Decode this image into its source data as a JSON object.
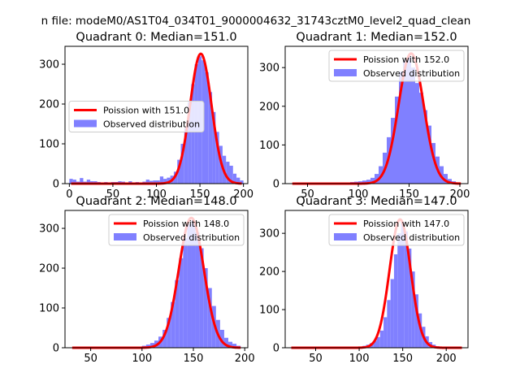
{
  "figure": {
    "suptitle": "n file: modeM0/AS1T04_034T01_9000004632_31743cztM0_level2_quad_clean"
  },
  "colors": {
    "curve": "#ff0000",
    "hist": "#8080ff",
    "axes": "#000000",
    "legend_edge": "#cccccc"
  },
  "chart_data": [
    {
      "type": "bar",
      "title": "Quadrant 0: Median=151.0",
      "median": 151.0,
      "xlim": [
        -5,
        205
      ],
      "ylim": [
        0,
        345
      ],
      "xticks": [
        0,
        50,
        100,
        150,
        200
      ],
      "yticks": [
        0,
        100,
        200,
        300
      ],
      "legend_loc": "center-left",
      "legend": [
        "Poission with 151.0",
        "Observed distribution"
      ],
      "bin_width": 4,
      "hist_x": [
        0,
        4,
        8,
        12,
        16,
        20,
        24,
        28,
        32,
        36,
        40,
        44,
        48,
        52,
        56,
        60,
        64,
        68,
        72,
        76,
        80,
        84,
        88,
        92,
        96,
        100,
        104,
        108,
        112,
        116,
        120,
        124,
        128,
        132,
        136,
        140,
        144,
        148,
        152,
        156,
        160,
        164,
        168,
        172,
        176,
        180,
        184,
        188,
        192,
        196
      ],
      "hist_y": [
        12,
        10,
        5,
        14,
        5,
        10,
        6,
        6,
        4,
        3,
        4,
        3,
        4,
        4,
        6,
        5,
        2,
        6,
        3,
        4,
        3,
        5,
        10,
        7,
        8,
        8,
        18,
        12,
        15,
        20,
        30,
        60,
        100,
        140,
        205,
        250,
        300,
        320,
        310,
        280,
        230,
        180,
        130,
        95,
        70,
        55,
        45,
        25,
        15,
        8
      ]
    },
    {
      "type": "bar",
      "title": "Quadrant 1: Median=152.0",
      "median": 152.0,
      "xlim": [
        28,
        208
      ],
      "ylim": [
        0,
        355
      ],
      "xticks": [
        50,
        100,
        150,
        200
      ],
      "yticks": [
        0,
        100,
        200,
        300
      ],
      "legend_loc": "top-right",
      "legend": [
        "Poission with 152.0",
        "Observed distribution"
      ],
      "bin_width": 4,
      "hist_x": [
        80,
        84,
        88,
        92,
        96,
        100,
        104,
        108,
        112,
        116,
        120,
        124,
        128,
        132,
        136,
        140,
        144,
        148,
        152,
        156,
        160,
        164,
        168,
        172,
        176,
        180,
        184,
        188,
        192,
        196
      ],
      "hist_y": [
        2,
        3,
        3,
        4,
        5,
        6,
        8,
        10,
        15,
        25,
        45,
        80,
        120,
        170,
        225,
        290,
        320,
        330,
        300,
        260,
        235,
        190,
        150,
        105,
        70,
        45,
        25,
        12,
        6,
        3
      ]
    },
    {
      "type": "bar",
      "title": "Quadrant 2: Median=148.0",
      "median": 148.0,
      "xlim": [
        25,
        203
      ],
      "ylim": [
        0,
        345
      ],
      "xticks": [
        50,
        100,
        150,
        200
      ],
      "yticks": [
        0,
        100,
        200,
        300
      ],
      "legend_loc": "top-right",
      "legend": [
        "Poission with 148.0",
        "Observed distribution"
      ],
      "bin_width": 4,
      "hist_x": [
        92,
        96,
        100,
        104,
        108,
        112,
        116,
        120,
        124,
        128,
        132,
        136,
        140,
        144,
        148,
        152,
        156,
        160,
        164,
        168,
        172,
        176,
        180,
        184,
        188,
        192
      ],
      "hist_y": [
        1,
        3,
        5,
        8,
        12,
        18,
        28,
        45,
        75,
        115,
        170,
        225,
        275,
        310,
        320,
        290,
        250,
        200,
        150,
        105,
        70,
        45,
        25,
        15,
        10,
        5
      ]
    },
    {
      "type": "bar",
      "title": "Quadrant 3: Median=147.0",
      "median": 147.0,
      "xlim": [
        15,
        225
      ],
      "ylim": [
        0,
        360
      ],
      "xticks": [
        50,
        100,
        150,
        200
      ],
      "yticks": [
        0,
        100,
        200,
        300
      ],
      "legend_loc": "top-right",
      "legend": [
        "Poission with 147.0",
        "Observed distribution"
      ],
      "bin_width": 4,
      "hist_x": [
        96,
        100,
        104,
        108,
        112,
        116,
        120,
        124,
        128,
        132,
        136,
        140,
        144,
        148,
        152,
        156,
        160,
        164,
        168,
        172,
        176,
        180,
        184,
        188,
        192
      ],
      "hist_y": [
        1,
        3,
        5,
        8,
        12,
        18,
        28,
        45,
        80,
        125,
        180,
        245,
        300,
        330,
        305,
        260,
        200,
        140,
        90,
        55,
        30,
        15,
        8,
        4,
        2
      ]
    }
  ]
}
